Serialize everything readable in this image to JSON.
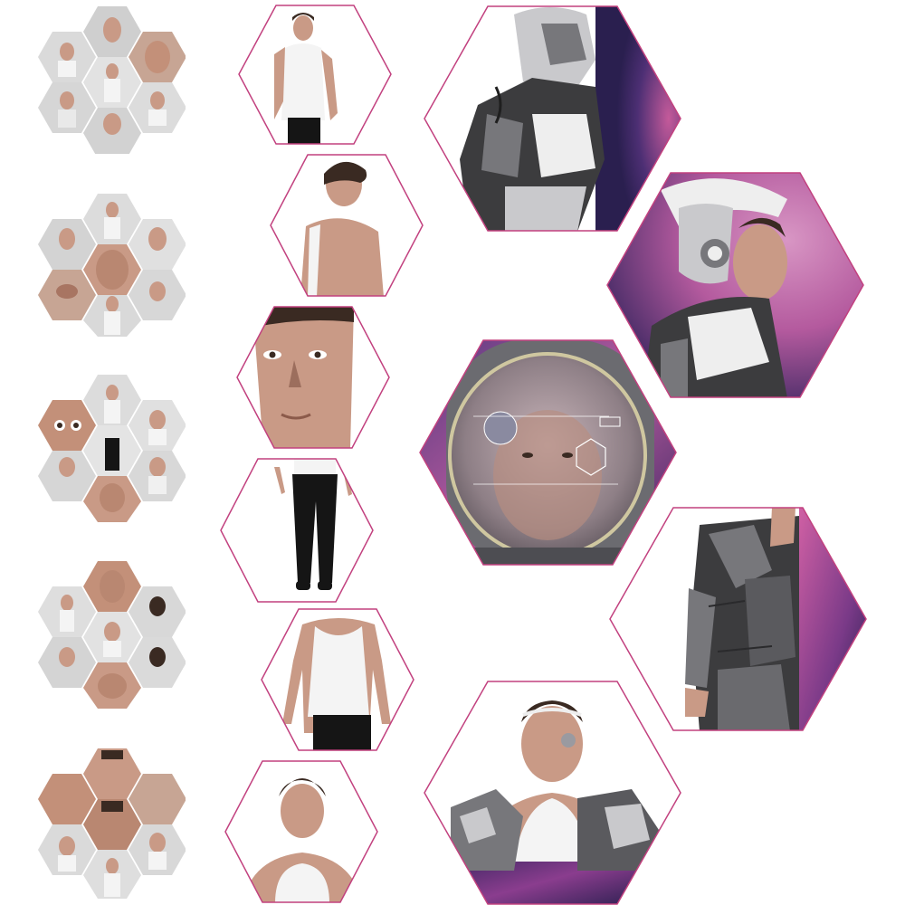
{
  "colors": {
    "outline": "#c2417f",
    "skin": "#c99a86",
    "skin_shadow": "#9c6e5d",
    "hair": "#3a2a22",
    "tank": "#f4f4f4",
    "pants": "#151515",
    "armor_dark": "#3c3c3e",
    "armor_mid": "#77777b",
    "armor_light": "#c9c9cc",
    "armor_white": "#eeeeee",
    "space_deep": "#2a1f4f",
    "space_pink": "#c45a9a",
    "photo_bg": "#e4e4e4"
  },
  "collage": {
    "contact_sheets": [
      {
        "name": "contact-sheet-1"
      },
      {
        "name": "contact-sheet-2"
      },
      {
        "name": "contact-sheet-3"
      },
      {
        "name": "contact-sheet-4"
      },
      {
        "name": "contact-sheet-5"
      }
    ],
    "reference_photos": [
      {
        "name": "photo-torso-front",
        "subject": "torso"
      },
      {
        "name": "photo-shoulder-back",
        "subject": "shoulder"
      },
      {
        "name": "photo-face-closeup",
        "subject": "face"
      },
      {
        "name": "photo-legs",
        "subject": "legs"
      },
      {
        "name": "photo-torso-tank",
        "subject": "torso"
      },
      {
        "name": "photo-head-shoulders",
        "subject": "head"
      }
    ],
    "artwork_panels": [
      {
        "name": "art-robot-armor-side"
      },
      {
        "name": "art-helmet-profile"
      },
      {
        "name": "art-space-helmet-visor"
      },
      {
        "name": "art-armor-arm"
      },
      {
        "name": "art-shoulder-armor-headband"
      }
    ]
  }
}
